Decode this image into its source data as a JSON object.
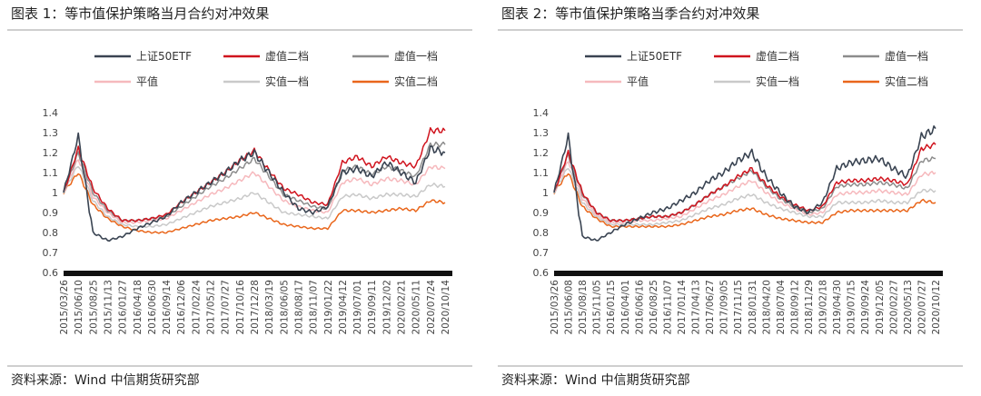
{
  "panels": [
    {
      "title": "图表 1：等市值保护策略当月合约对冲效果",
      "source": "资料来源：Wind  中信期货研究部"
    },
    {
      "title": "图表 2：等市值保护策略当季合约对冲效果",
      "source": "资料来源：Wind  中信期货研究部"
    }
  ],
  "chart_data": [
    {
      "type": "line",
      "title": "等市值保护策略当月合约对冲效果",
      "ylim": [
        0.6,
        1.4
      ],
      "yticks": [
        "0.6",
        "0.7",
        "0.8",
        "0.9",
        "1",
        "1.1",
        "1.2",
        "1.3",
        "1.4"
      ],
      "x": [
        "2015/03/26",
        "2015/06/10",
        "2015/08/25",
        "2015/11/13",
        "2016/01/27",
        "2016/04/18",
        "2016/06/30",
        "2016/09/14",
        "2016/12/06",
        "2017/02/24",
        "2017/05/12",
        "2017/07/27",
        "2017/10/16",
        "2017/12/28",
        "2018/03/19",
        "2018/06/05",
        "2018/08/17",
        "2018/11/07",
        "2019/01/22",
        "2019/04/12",
        "2019/07/01",
        "2019/09/11",
        "2019/12/02",
        "2020/02/21",
        "2020/05/11",
        "2020/07/24",
        "2020/10/14"
      ],
      "legend": {
        "columns": 3,
        "placement": "top"
      },
      "series": [
        {
          "name": "上证50ETF",
          "color": "#3a4452",
          "values": [
            1.0,
            1.28,
            0.8,
            0.76,
            0.78,
            0.82,
            0.85,
            0.88,
            0.95,
            1.0,
            1.05,
            1.1,
            1.16,
            1.2,
            1.1,
            1.0,
            0.92,
            0.9,
            0.93,
            1.1,
            1.12,
            1.08,
            1.15,
            1.1,
            1.05,
            1.22,
            1.2
          ]
        },
        {
          "name": "虚值二档",
          "color": "#d0141e",
          "values": [
            1.0,
            1.22,
            1.02,
            0.92,
            0.86,
            0.86,
            0.87,
            0.89,
            0.95,
            1.0,
            1.05,
            1.1,
            1.16,
            1.21,
            1.11,
            1.02,
            0.99,
            0.95,
            0.94,
            1.15,
            1.18,
            1.13,
            1.18,
            1.15,
            1.13,
            1.31,
            1.31
          ]
        },
        {
          "name": "虚值一档",
          "color": "#8c8c8c",
          "values": [
            1.0,
            1.2,
            1.0,
            0.91,
            0.86,
            0.86,
            0.87,
            0.88,
            0.93,
            0.98,
            1.03,
            1.07,
            1.12,
            1.17,
            1.08,
            0.99,
            0.96,
            0.93,
            0.92,
            1.11,
            1.13,
            1.09,
            1.13,
            1.11,
            1.08,
            1.24,
            1.24
          ]
        },
        {
          "name": "平值",
          "color": "#f6b9bd",
          "values": [
            1.0,
            1.17,
            0.98,
            0.9,
            0.85,
            0.85,
            0.86,
            0.87,
            0.91,
            0.95,
            0.99,
            1.02,
            1.06,
            1.1,
            1.03,
            0.96,
            0.93,
            0.91,
            0.9,
            1.05,
            1.07,
            1.04,
            1.07,
            1.06,
            1.04,
            1.13,
            1.12
          ]
        },
        {
          "name": "实值一档",
          "color": "#c9c9c9",
          "values": [
            1.0,
            1.14,
            0.96,
            0.88,
            0.84,
            0.83,
            0.83,
            0.84,
            0.87,
            0.9,
            0.93,
            0.95,
            0.97,
            1.0,
            0.95,
            0.9,
            0.89,
            0.88,
            0.87,
            0.98,
            0.99,
            0.97,
            0.99,
            0.99,
            0.98,
            1.04,
            1.03
          ]
        },
        {
          "name": "实值二档",
          "color": "#e9661b",
          "values": [
            1.0,
            1.1,
            0.94,
            0.87,
            0.83,
            0.81,
            0.8,
            0.8,
            0.82,
            0.84,
            0.86,
            0.87,
            0.88,
            0.9,
            0.87,
            0.84,
            0.83,
            0.82,
            0.82,
            0.91,
            0.91,
            0.9,
            0.91,
            0.92,
            0.91,
            0.96,
            0.95
          ]
        }
      ]
    },
    {
      "type": "line",
      "title": "等市值保护策略当季合约对冲效果",
      "ylim": [
        0.6,
        1.4
      ],
      "yticks": [
        "0.6",
        "0.7",
        "0.8",
        "0.9",
        "1",
        "1.1",
        "1.2",
        "1.3",
        "1.4"
      ],
      "x": [
        "2015/03/26",
        "2015/06/08",
        "2015/08/18",
        "2015/11/05",
        "2016/01/15",
        "2016/04/01",
        "2016/06/16",
        "2016/08/25",
        "2016/11/07",
        "2017/01/14",
        "2017/04/13",
        "2017/06/27",
        "2017/09/05",
        "2017/11/15",
        "2018/01/31",
        "2018/04/20",
        "2018/07/04",
        "2018/09/12",
        "2018/11/29",
        "2019/02/18",
        "2019/04/30",
        "2019/07/15",
        "2019/09/24",
        "2019/12/05",
        "2020/02/27",
        "2020/05/13",
        "2020/07/27",
        "2020/10/12"
      ],
      "legend": {
        "columns": 3,
        "placement": "top"
      },
      "series": [
        {
          "name": "上证50ETF",
          "color": "#3a4452",
          "values": [
            1.0,
            1.28,
            0.78,
            0.76,
            0.8,
            0.84,
            0.87,
            0.9,
            0.92,
            0.96,
            1.0,
            1.06,
            1.1,
            1.16,
            1.2,
            1.08,
            1.0,
            0.93,
            0.9,
            0.95,
            1.12,
            1.15,
            1.16,
            1.17,
            1.12,
            1.08,
            1.28,
            1.32
          ]
        },
        {
          "name": "虚值二档",
          "color": "#d0141e",
          "values": [
            1.0,
            1.2,
            1.0,
            0.9,
            0.86,
            0.86,
            0.87,
            0.88,
            0.88,
            0.9,
            0.94,
            0.99,
            1.03,
            1.08,
            1.12,
            1.04,
            0.98,
            0.94,
            0.91,
            0.93,
            1.05,
            1.06,
            1.06,
            1.07,
            1.06,
            1.04,
            1.22,
            1.24
          ]
        },
        {
          "name": "虚值一档",
          "color": "#8c8c8c",
          "values": [
            1.0,
            1.19,
            0.99,
            0.9,
            0.86,
            0.86,
            0.87,
            0.88,
            0.88,
            0.9,
            0.94,
            0.99,
            1.03,
            1.07,
            1.11,
            1.03,
            0.97,
            0.93,
            0.9,
            0.92,
            1.03,
            1.04,
            1.04,
            1.05,
            1.04,
            1.02,
            1.16,
            1.17
          ]
        },
        {
          "name": "平值",
          "color": "#f6b9bd",
          "values": [
            1.0,
            1.16,
            0.97,
            0.89,
            0.85,
            0.85,
            0.86,
            0.86,
            0.87,
            0.88,
            0.92,
            0.96,
            0.99,
            1.03,
            1.06,
            1.0,
            0.95,
            0.92,
            0.89,
            0.9,
            0.99,
            1.0,
            1.0,
            1.01,
            1.0,
            0.99,
            1.09,
            1.1
          ]
        },
        {
          "name": "实值一档",
          "color": "#c9c9c9",
          "values": [
            1.0,
            1.13,
            0.95,
            0.88,
            0.84,
            0.84,
            0.84,
            0.84,
            0.85,
            0.86,
            0.89,
            0.92,
            0.94,
            0.97,
            0.99,
            0.95,
            0.92,
            0.9,
            0.88,
            0.88,
            0.95,
            0.95,
            0.95,
            0.96,
            0.95,
            0.95,
            1.01,
            1.01
          ]
        },
        {
          "name": "实值二档",
          "color": "#e9661b",
          "values": [
            1.0,
            1.1,
            0.93,
            0.87,
            0.83,
            0.83,
            0.83,
            0.83,
            0.83,
            0.84,
            0.86,
            0.88,
            0.89,
            0.91,
            0.92,
            0.89,
            0.87,
            0.86,
            0.85,
            0.85,
            0.9,
            0.91,
            0.91,
            0.91,
            0.91,
            0.91,
            0.96,
            0.95
          ]
        }
      ]
    }
  ]
}
